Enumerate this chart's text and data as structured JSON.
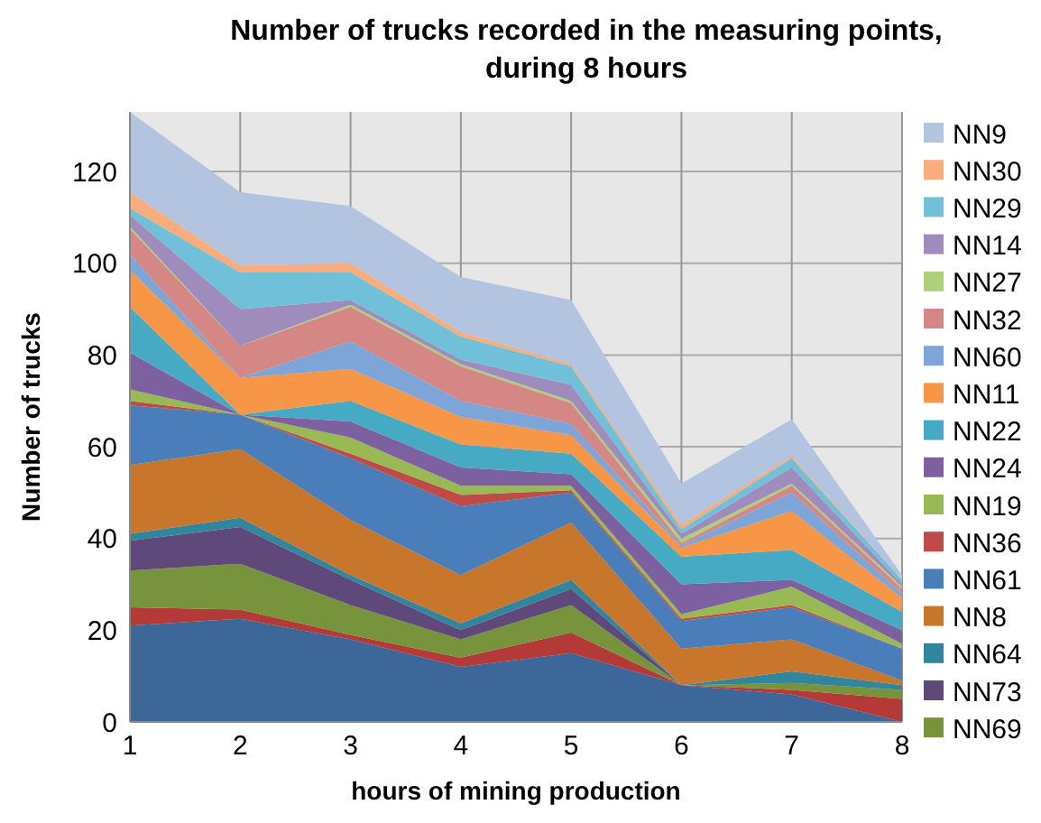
{
  "chart_data": {
    "type": "area",
    "stacked": true,
    "title": "Number of trucks recorded in the measuring points,\nduring 8 hours",
    "xlabel": "hours of mining production",
    "ylabel": "Number of trucks",
    "x": [
      1,
      2,
      3,
      4,
      5,
      6,
      7,
      8
    ],
    "xlim": [
      1,
      8
    ],
    "xticks": [
      1,
      2,
      3,
      4,
      5,
      6,
      7,
      8
    ],
    "ylim": [
      0,
      133
    ],
    "yticks": [
      0,
      20,
      40,
      60,
      80,
      100,
      120
    ],
    "grid": true,
    "legend": "right",
    "series": [
      {
        "color": "#3d6699",
        "values": [
          21,
          22.5,
          18,
          12,
          15,
          8,
          6,
          0
        ]
      },
      {
        "color": "#b33a37",
        "values": [
          4,
          2,
          1,
          2,
          4.5,
          0,
          1,
          5
        ]
      },
      {
        "name": "NN69",
        "color": "#77933c",
        "values": [
          8,
          10,
          6.5,
          4,
          6,
          0,
          1.5,
          2
        ]
      },
      {
        "name": "NN73",
        "color": "#5f497a",
        "values": [
          6.5,
          8,
          5.5,
          2,
          3.5,
          0,
          0,
          0
        ]
      },
      {
        "name": "NN64",
        "color": "#31859c",
        "values": [
          1.5,
          2,
          1,
          1.5,
          2,
          0,
          2.5,
          1
        ]
      },
      {
        "name": "NN8",
        "color": "#c8762c",
        "values": [
          15,
          15,
          12,
          10.5,
          12.5,
          8,
          7,
          1
        ]
      },
      {
        "name": "NN61",
        "color": "#4a7ebb",
        "values": [
          13,
          7.5,
          13.5,
          15,
          6.5,
          6,
          7,
          7
        ]
      },
      {
        "name": "NN36",
        "color": "#be4b48",
        "values": [
          1,
          0,
          1,
          2.5,
          0.5,
          0.5,
          0.5,
          0
        ]
      },
      {
        "name": "NN19",
        "color": "#98b954",
        "values": [
          2.5,
          0,
          3.5,
          2,
          1,
          1,
          4,
          1
        ]
      },
      {
        "name": "NN24",
        "color": "#7d60a0",
        "values": [
          8,
          0,
          3.5,
          4,
          2.5,
          6.5,
          1.5,
          3
        ]
      },
      {
        "name": "NN22",
        "color": "#46aac5",
        "values": [
          10,
          0,
          4.5,
          5,
          4.5,
          6,
          6.5,
          4
        ]
      },
      {
        "name": "NN11",
        "color": "#f79646",
        "values": [
          8,
          8,
          7,
          6,
          4,
          2,
          8.5,
          3
        ]
      },
      {
        "name": "NN60",
        "color": "#7ea5d8",
        "values": [
          3.5,
          0,
          6,
          3.5,
          2.5,
          0.5,
          4,
          1
        ]
      },
      {
        "name": "NN32",
        "color": "#d58785",
        "values": [
          5.5,
          7,
          7.5,
          7.5,
          4.5,
          0.5,
          1.5,
          1
        ]
      },
      {
        "name": "NN27",
        "color": "#aecf7c",
        "values": [
          0.5,
          0,
          0.5,
          0.5,
          0.5,
          1,
          0.5,
          0.5
        ]
      },
      {
        "name": "NN14",
        "color": "#a08cbc",
        "values": [
          2.5,
          8,
          1,
          1,
          3.5,
          1,
          3.5,
          0.5
        ]
      },
      {
        "name": "NN29",
        "color": "#6fc0d8",
        "values": [
          1.5,
          8,
          6,
          5,
          4,
          1,
          2,
          1
        ]
      },
      {
        "name": "NN30",
        "color": "#f9ad7c",
        "values": [
          3.5,
          1.5,
          2,
          1,
          0.5,
          1,
          0.5,
          0
        ]
      },
      {
        "name": "NN9",
        "color": "#b3c4e0",
        "values": [
          17.5,
          16,
          12.5,
          12,
          14,
          9,
          8,
          1
        ]
      }
    ]
  }
}
